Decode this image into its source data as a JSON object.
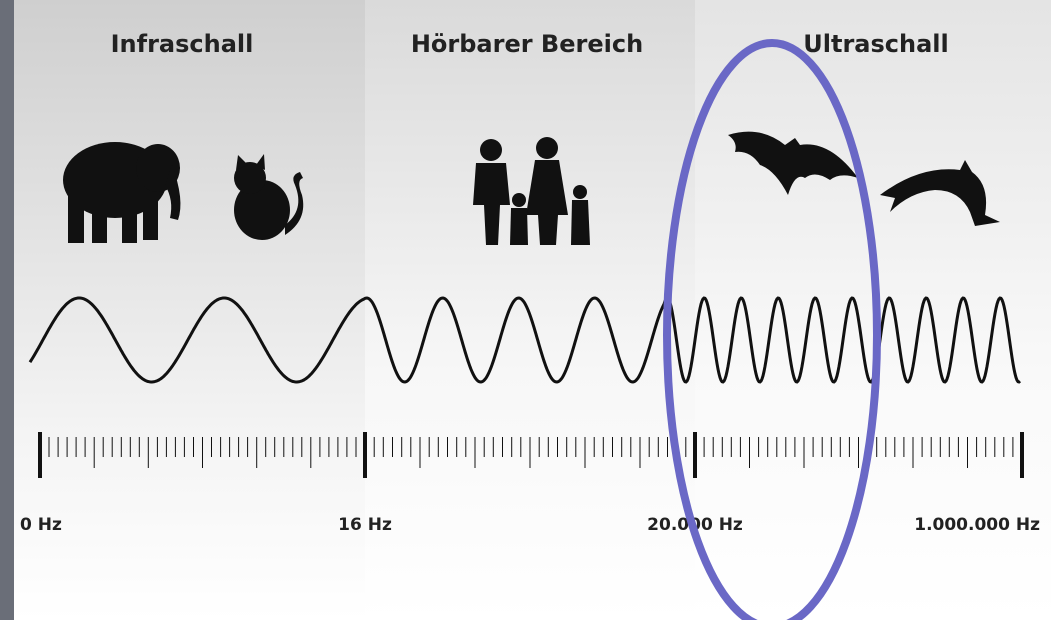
{
  "sections": [
    {
      "title": "Infraschall"
    },
    {
      "title": "Hörbarer Bereich"
    },
    {
      "title": "Ultraschall"
    }
  ],
  "scale": {
    "labels": [
      "0 Hz",
      "16 Hz",
      "20.000 Hz",
      "1.000.000 Hz"
    ]
  }
}
